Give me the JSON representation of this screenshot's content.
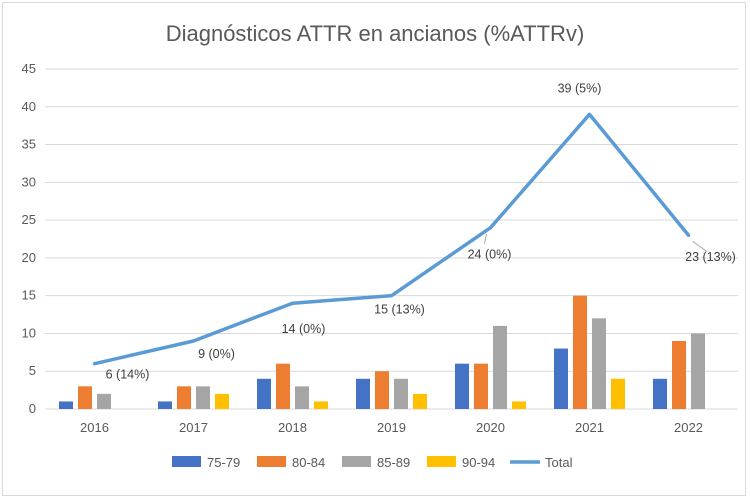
{
  "chart_data": {
    "type": "bar",
    "title": "Diagnósticos ATTR en ancianos (%ATTRv)",
    "categories": [
      "2016",
      "2017",
      "2018",
      "2019",
      "2020",
      "2021",
      "2022"
    ],
    "ylim": [
      0,
      45
    ],
    "yticks": [
      "0",
      "5",
      "10",
      "15",
      "20",
      "25",
      "30",
      "35",
      "40",
      "45"
    ],
    "grid": true,
    "legend_position": "bottom",
    "series": [
      {
        "name": "75-79",
        "kind": "bar",
        "color": "#4472C4",
        "values": [
          1,
          1,
          4,
          4,
          6,
          8,
          4
        ]
      },
      {
        "name": "80-84",
        "kind": "bar",
        "color": "#ED7D31",
        "values": [
          3,
          3,
          6,
          5,
          6,
          15,
          9
        ]
      },
      {
        "name": "85-89",
        "kind": "bar",
        "color": "#A5A5A5",
        "values": [
          2,
          3,
          3,
          4,
          11,
          12,
          10
        ]
      },
      {
        "name": "90-94",
        "kind": "bar",
        "color": "#FFC000",
        "values": [
          0,
          2,
          1,
          2,
          1,
          4,
          0
        ]
      },
      {
        "name": "Total",
        "kind": "line",
        "color": "#5B9BD5",
        "values": [
          6,
          9,
          14,
          15,
          24,
          39,
          23
        ]
      }
    ],
    "line_labels": [
      "6 (14%)",
      "9 (0%)",
      "14 (0%)",
      "15 (13%)",
      "24 (0%)",
      "39 (5%)",
      "23 (13%)"
    ]
  }
}
